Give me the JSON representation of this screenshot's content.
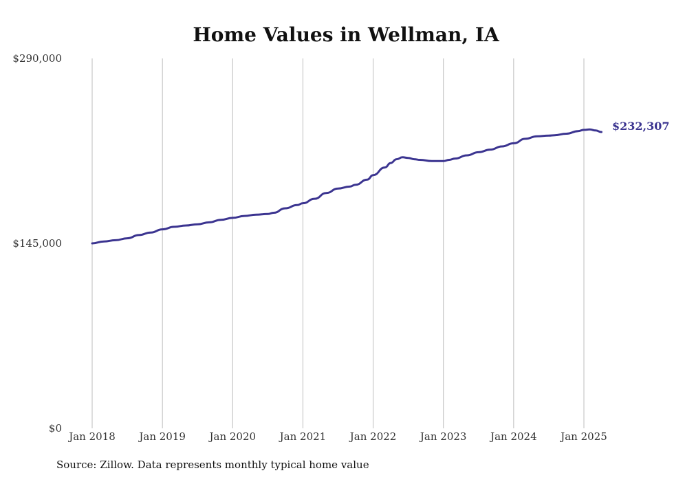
{
  "chart_data": {
    "type": "line",
    "title": "Home Values in Wellman, IA",
    "xlabel": "",
    "ylabel": "",
    "ylim": [
      0,
      290000
    ],
    "y_ticks": [
      {
        "value": 0,
        "label": "$0"
      },
      {
        "value": 145000,
        "label": "$145,000"
      },
      {
        "value": 290000,
        "label": "$290,000"
      }
    ],
    "x_ticks": [
      {
        "value": 2018.0,
        "label": "Jan 2018"
      },
      {
        "value": 2019.0,
        "label": "Jan 2019"
      },
      {
        "value": 2020.0,
        "label": "Jan 2020"
      },
      {
        "value": 2021.0,
        "label": "Jan 2021"
      },
      {
        "value": 2022.0,
        "label": "Jan 2022"
      },
      {
        "value": 2023.0,
        "label": "Jan 2023"
      },
      {
        "value": 2024.0,
        "label": "Jan 2024"
      },
      {
        "value": 2025.0,
        "label": "Jan 2025"
      }
    ],
    "xlim": [
      2018.0,
      2025.25
    ],
    "grid": "vertical",
    "line_color": "#3b3490",
    "series": [
      {
        "x": [
          2018.0,
          2018.167,
          2018.333,
          2018.5,
          2018.667,
          2018.833,
          2019.0,
          2019.167,
          2019.333,
          2019.5,
          2019.667,
          2019.833,
          2020.0,
          2020.167,
          2020.333,
          2020.5,
          2020.583,
          2020.75,
          2020.917,
          2021.0,
          2021.167,
          2021.333,
          2021.5,
          2021.667,
          2021.75,
          2021.917,
          2022.0,
          2022.167,
          2022.25,
          2022.333,
          2022.417,
          2022.5,
          2022.583,
          2022.667,
          2022.833,
          2023.0,
          2023.083,
          2023.167,
          2023.333,
          2023.5,
          2023.667,
          2023.833,
          2024.0,
          2024.167,
          2024.333,
          2024.5,
          2024.583,
          2024.75,
          2024.917,
          2025.0,
          2025.083,
          2025.167,
          2025.25
        ],
        "values": [
          145000,
          146500,
          147500,
          149000,
          151500,
          153500,
          156000,
          158000,
          159000,
          160000,
          161500,
          163500,
          165000,
          166500,
          167500,
          168000,
          169000,
          172500,
          175000,
          176500,
          180000,
          184500,
          188000,
          189500,
          191000,
          195000,
          198500,
          204500,
          208000,
          211000,
          212500,
          212000,
          211000,
          210500,
          209500,
          209500,
          210500,
          211500,
          214000,
          216500,
          218500,
          221000,
          223500,
          227000,
          229000,
          229500,
          229800,
          231000,
          233000,
          234000,
          234300,
          233500,
          232307
        ]
      }
    ],
    "end_label": "$232,307"
  },
  "source_note": "Source: Zillow. Data represents monthly typical home value"
}
